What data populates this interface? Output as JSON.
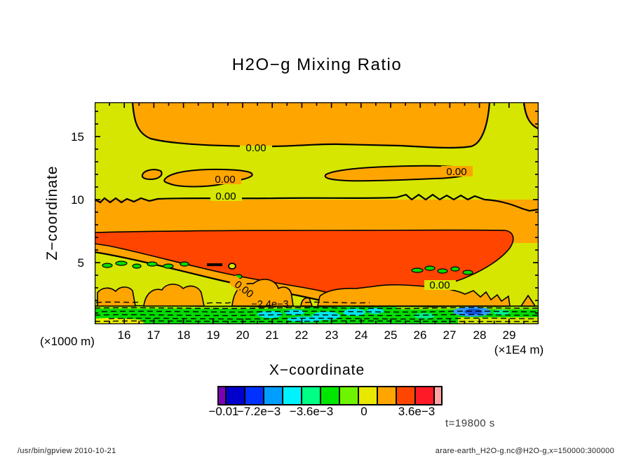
{
  "title": "H2O−g Mixing Ratio",
  "axes": {
    "y_label": "Z−coordinate",
    "x_label": "X−coordinate",
    "y_ticks": [
      "15",
      "10",
      "5"
    ],
    "x_ticks": [
      "16",
      "17",
      "18",
      "19",
      "20",
      "21",
      "22",
      "23",
      "24",
      "25",
      "26",
      "27",
      "28",
      "29"
    ],
    "x_unit_left": "(×1000 m)",
    "x_unit_right": "(×1E4 m)"
  },
  "colorbar": {
    "labels": [
      "−0.01",
      "−7.2e−3",
      "−3.6e−3",
      "0",
      "3.6e−3"
    ],
    "colors": [
      "#7D00B8",
      "#0000CD",
      "#0031FF",
      "#009EFF",
      "#00F2FF",
      "#00FF85",
      "#00E600",
      "#6FF400",
      "#E8E800",
      "#FFA500",
      "#FF4500",
      "#FF1A28",
      "#FFA3A3"
    ],
    "segment_widths": [
      9,
      25,
      25,
      25,
      25,
      25,
      25,
      25,
      25,
      25,
      25,
      25,
      9
    ]
  },
  "contour_labels": {
    "l0": "0.00",
    "l1": "0.00",
    "l2": "0.00",
    "l3": "0.00",
    "l4": "0.00",
    "l5": "0.00",
    "l6": "−2.4e−3"
  },
  "annotations": {
    "time": "t=19800 s"
  },
  "footer": {
    "left": "/usr/bin/gpview   2010-10-21",
    "right": "arare-earth_H2O-g.nc@H2O-g,x=150000:300000"
  },
  "plot_colors": {
    "background": "#D6E600",
    "orange": "#FFA500",
    "red": "#FF4500",
    "green": "#00DC00",
    "spring_green": "#00EE88",
    "cyan": "#00E5EE",
    "blue": "#2E9BFF",
    "deep_blue": "#1252D8",
    "yellow": "#EFEF00",
    "contour_line": "#000000"
  },
  "chart_data": {
    "type": "heatmap",
    "subtype": "filled-contour",
    "title": "H2O−g Mixing Ratio",
    "xlabel": "X−coordinate",
    "ylabel": "Z−coordinate",
    "x_unit": "1E4 m",
    "y_unit": "1000 m",
    "xlim": [
      15,
      30
    ],
    "ylim": [
      0.1,
      17.7
    ],
    "x_ticks": [
      16,
      17,
      18,
      19,
      20,
      21,
      22,
      23,
      24,
      25,
      26,
      27,
      28,
      29
    ],
    "x_minor_step": 0.5,
    "y_ticks": [
      5,
      10,
      15
    ],
    "y_minor_step": 1,
    "time": "t=19800 s",
    "contour_interval": 0.0012,
    "levels": [
      -0.0096,
      -0.0084,
      -0.0072,
      -0.006,
      -0.0048,
      -0.0036,
      -0.0024,
      -0.0012,
      0,
      0.0012,
      0.0024,
      0.0036
    ],
    "labeled_levels": [
      "−0.01",
      "−7.2e−3",
      "−3.6e−3",
      "0",
      "3.6e−3"
    ],
    "level_colors": [
      "#7D00B8",
      "#0000CD",
      "#0031FF",
      "#009EFF",
      "#00F2FF",
      "#00FF85",
      "#00E600",
      "#6FF400",
      "#E8E800",
      "#FFA500",
      "#FF4500",
      "#FF1A28",
      "#FFA3A3"
    ],
    "negative_contours_dashed": true,
    "field_summary": [
      {
        "z_range_1000m": [
          13,
          17.7
        ],
        "x_range_1E4m": [
          15,
          30
        ],
        "value_range": "0 to 1.2e-3",
        "appearance": "orange cap region bounded below by labeled 0.00 contour"
      },
      {
        "z_range_1000m": [
          10.5,
          13
        ],
        "x_range_1E4m": [
          15,
          30
        ],
        "value_range": "-1.2e-3 to 0",
        "appearance": "yellow-green band containing thin orange 0.00 lenses near z=12 (x≈16.5-23.5 and x≈22.8-28)"
      },
      {
        "z_range_1000m": [
          7.5,
          10.3
        ],
        "x_range_1E4m": [
          15,
          30
        ],
        "value_range": "0 to 1.2e-3",
        "appearance": "full-width orange band, top edge is the jagged 0.00 contour at z≈10"
      },
      {
        "z_range_1000m": [
          5.3,
          7.5
        ],
        "x_range_1E4m": [
          15,
          29.2
        ],
        "value_range": "1.2e-3 to 2.4e-3",
        "appearance": "large red core, deepest (down to z≈2) near x=23-24"
      },
      {
        "z_range_1000m": [
          1.5,
          5.3
        ],
        "x_range_1E4m": [
          15,
          30
        ],
        "value_range": "-1.2e-3 to 0",
        "appearance": "yellow-green with small green -1.2e-3 patches near z≈4 and orange 0.00 cells near z=1.5-2.5 labeled 0.00"
      },
      {
        "z_range_1000m": [
          0.1,
          1.5
        ],
        "x_range_1E4m": [
          15,
          30
        ],
        "value_range": "-8e-3 to 0",
        "appearance": "green surface layer with dashed negative contours (−2.4e−3 labeled), cyan and blue pockets near x=22-23.5, yellow sliver at lower-left"
      }
    ]
  }
}
